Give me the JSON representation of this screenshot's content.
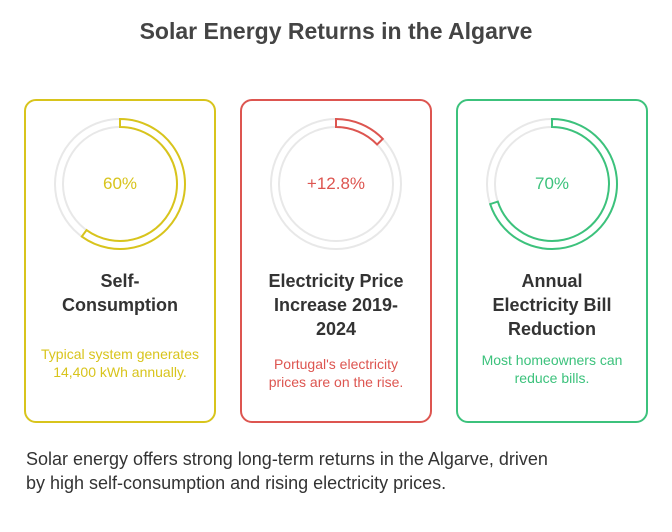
{
  "title": "Solar Energy Returns in the Algarve",
  "cards": [
    {
      "value": 60,
      "value_label": "60%",
      "color": "#d8c41c",
      "title": "Self-Consumption",
      "description": "Typical system generates 14,400 kWh annually."
    },
    {
      "value": 12.8,
      "value_label": "+12.8%",
      "color": "#dd5550",
      "title": "Electricity Price Increase 2019-2024",
      "description": "Portugal's electricity prices are on the rise."
    },
    {
      "value": 70,
      "value_label": "70%",
      "color": "#3cc27c",
      "title": "Annual Electricity Bill Reduction",
      "description": "Most homeowners can reduce bills."
    }
  ],
  "footer": "Solar energy offers strong long-term returns in the Algarve, driven by high self-consumption and rising electricity prices."
}
